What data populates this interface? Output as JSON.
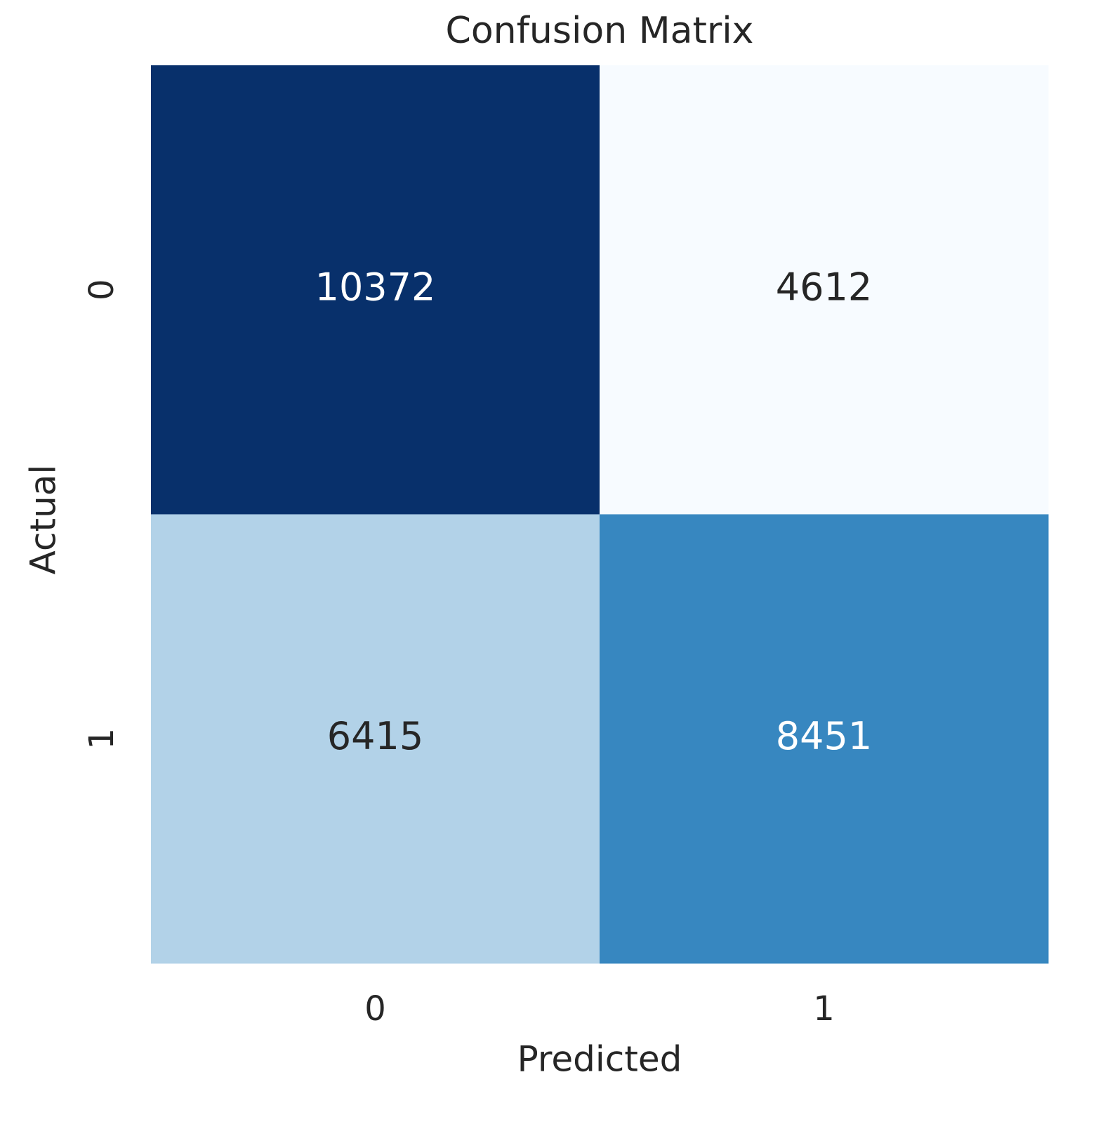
{
  "chart_data": {
    "type": "heatmap",
    "title": "Confusion Matrix",
    "xlabel": "Predicted",
    "ylabel": "Actual",
    "x_categories": [
      "0",
      "1"
    ],
    "y_categories": [
      "0",
      "1"
    ],
    "values": [
      [
        10372,
        4612
      ],
      [
        6415,
        8451
      ]
    ],
    "colormap": "Blues"
  }
}
